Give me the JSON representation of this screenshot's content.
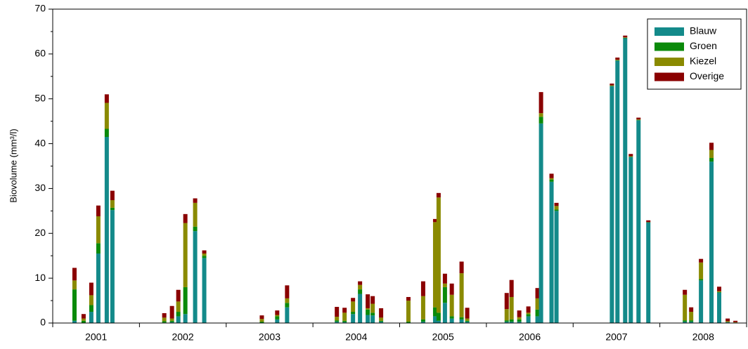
{
  "chart_data": {
    "type": "stacked_bar",
    "y_label": "Biovolume (mm³/l)",
    "categories": [
      "2001",
      "2002",
      "2003",
      "2004",
      "2005",
      "2006",
      "2007",
      "2008"
    ],
    "x": [
      2001.251,
      2001.356,
      2001.445,
      2001.526,
      2001.623,
      2001.688,
      2002.286,
      2002.375,
      2002.448,
      2002.529,
      2002.642,
      2002.747,
      2003.411,
      2003.588,
      2003.702,
      2004.276,
      2004.365,
      2004.462,
      2004.543,
      2004.632,
      2004.689,
      2004.786,
      2005.101,
      2005.271,
      2005.409,
      2005.449,
      2005.522,
      2005.601,
      2005.714,
      2005.779,
      2006.234,
      2006.29,
      2006.379,
      2006.484,
      2006.589,
      2006.63,
      2006.751,
      2006.808,
      2007.447,
      2007.511,
      2007.6,
      2007.665,
      2007.754,
      2007.867,
      2008.288,
      2008.361,
      2008.474,
      2008.595,
      2008.684,
      2008.782,
      2008.871
    ],
    "xlim": [
      2001,
      2009
    ],
    "xticks": [
      2001,
      2002,
      2003,
      2004,
      2005,
      2006,
      2007,
      2008,
      2009
    ],
    "ylim": [
      0,
      70
    ],
    "yticks": [
      0,
      10,
      20,
      30,
      40,
      50,
      60,
      70
    ],
    "legend": "upper right",
    "series": [
      {
        "name": "Blauw",
        "color": "#138a8a",
        "values": [
          0.5,
          0,
          2.5,
          15.5,
          41.5,
          25.2,
          0.1,
          0.2,
          1.5,
          2,
          20.5,
          14.5,
          0,
          0.8,
          3.5,
          0.3,
          0.2,
          2,
          6.5,
          1.8,
          1.7,
          0.3,
          0,
          0.3,
          1.5,
          0.5,
          4.5,
          1,
          0.8,
          0.3,
          0.3,
          0.3,
          0.3,
          1.5,
          1.5,
          44.5,
          31.5,
          25,
          52.8,
          58.5,
          63.5,
          37,
          45.2,
          22.4,
          0.3,
          0.3,
          9.5,
          36,
          6.8,
          0.2,
          0.1
        ]
      },
      {
        "name": "Groen",
        "color": "#0a8a0a",
        "values": [
          7,
          0.5,
          1.5,
          2.3,
          1.8,
          0.5,
          0.3,
          0.3,
          1,
          6,
          1,
          0.5,
          0.3,
          0.7,
          1,
          0.3,
          0.3,
          0.5,
          1,
          1.2,
          0.6,
          0.2,
          0.3,
          0.5,
          2,
          1.8,
          3.5,
          0.5,
          0.5,
          0.2,
          0.3,
          0.5,
          0.5,
          0.5,
          1.5,
          1.5,
          0.5,
          0.3,
          0.1,
          0.1,
          0.1,
          0.1,
          0.1,
          0.1,
          0.3,
          0.3,
          0.3,
          0.8,
          0.1,
          0,
          0
        ]
      },
      {
        "name": "Kiezel",
        "color": "#8a8a00",
        "values": [
          2,
          0.5,
          2.2,
          6,
          5.8,
          1.7,
          0.8,
          0.5,
          2.3,
          14.3,
          5.3,
          0.5,
          0.6,
          0.3,
          1,
          0.8,
          1.8,
          2.3,
          1,
          0.3,
          2,
          0.7,
          4.7,
          5.2,
          19,
          25.7,
          0.8,
          4.8,
          9.8,
          0.5,
          2.5,
          5,
          0.5,
          0.3,
          2.5,
          0.8,
          0.3,
          0.8,
          0.1,
          0.1,
          0.1,
          0.1,
          0.1,
          0,
          5.7,
          1.9,
          3.7,
          1.8,
          0.2,
          0.2,
          0.1
        ]
      },
      {
        "name": "Overige",
        "color": "#8a0000",
        "values": [
          2.8,
          1,
          2.8,
          2.4,
          1.9,
          2.1,
          1,
          2.8,
          2.6,
          2,
          1,
          0.7,
          0.8,
          1,
          2.9,
          2.2,
          1.1,
          0.8,
          0.8,
          3.1,
          1.7,
          2.1,
          0.8,
          3.3,
          0.7,
          1,
          2.2,
          2.5,
          2.6,
          2.4,
          3.6,
          3.8,
          1.5,
          1.4,
          2.3,
          4.7,
          1,
          0.7,
          0.4,
          0.5,
          0.4,
          0.5,
          0.4,
          0.4,
          1.1,
          1,
          0.8,
          1.6,
          1,
          0.6,
          0.3
        ]
      }
    ]
  }
}
